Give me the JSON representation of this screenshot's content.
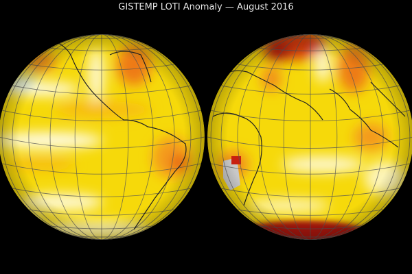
{
  "title": "GISTEMP LOTI Anomaly — August 2016"
}
